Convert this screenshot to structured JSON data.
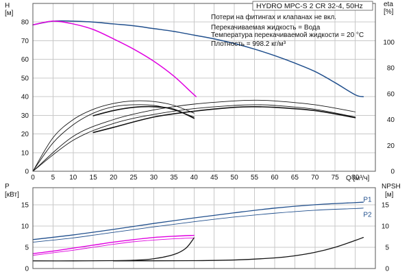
{
  "colors": {
    "head_curve": "#1f4e8c",
    "head_curve_single": "#e000e0",
    "efficiency": "#111111",
    "power": "#1f4e8c",
    "power_single": "#e000e0",
    "npsh": "#111111"
  },
  "chart_data": [
    {
      "type": "line",
      "title": "HYDRO MPC-S 2 CR 32-4, 50Hz",
      "notes": [
        "Потери на фитингах и клапанах не вкл.",
        "Перекачиваемая жидкость = Вода",
        "Температура перекачиваемой жидкости = 20 °C",
        "Плотность = 998.2 кг/м³"
      ],
      "xlabel": "Q [м³/ч]",
      "ylabel_left": "H",
      "ylabel_left_unit": "[м]",
      "ylabel_right": "eta",
      "ylabel_right_unit": "[%]",
      "xlim": [
        0,
        85
      ],
      "ylim_left": [
        0,
        90
      ],
      "ylim_right": [
        0,
        130
      ],
      "x_ticks": [
        0,
        5,
        10,
        15,
        20,
        25,
        30,
        35,
        40,
        45,
        50,
        55,
        60,
        65,
        70,
        75,
        80
      ],
      "y_ticks_left": [
        0,
        10,
        20,
        30,
        40,
        50,
        60,
        70,
        80
      ],
      "y_ticks_right": [
        0,
        20,
        40,
        60,
        80,
        100
      ],
      "grid": true,
      "series": [
        {
          "axis": "left",
          "color_key": "head_curve",
          "width": 1.5,
          "points": [
            [
              0,
              78.5
            ],
            [
              5,
              80.5
            ],
            [
              10,
              80.5
            ],
            [
              15,
              80
            ],
            [
              20,
              79
            ],
            [
              25,
              78
            ],
            [
              30,
              76.5
            ],
            [
              35,
              75
            ],
            [
              40,
              73
            ],
            [
              45,
              71
            ],
            [
              50,
              68.5
            ],
            [
              55,
              65.5
            ],
            [
              60,
              62
            ],
            [
              65,
              58
            ],
            [
              70,
              53.5
            ],
            [
              75,
              47.5
            ],
            [
              80,
              41
            ],
            [
              82,
              40
            ]
          ]
        },
        {
          "axis": "left",
          "color_key": "head_curve_single",
          "width": 1.5,
          "points": [
            [
              0,
              78.5
            ],
            [
              5,
              80.5
            ],
            [
              10,
              79
            ],
            [
              15,
              76
            ],
            [
              20,
              71
            ],
            [
              25,
              65.5
            ],
            [
              30,
              59
            ],
            [
              35,
              51
            ],
            [
              39,
              43
            ],
            [
              40.5,
              40
            ]
          ]
        },
        {
          "axis": "right",
          "color_key": "efficiency",
          "width": 0.9,
          "points": [
            [
              0,
              0
            ],
            [
              5,
              26
            ],
            [
              10,
              40
            ],
            [
              15,
              48
            ],
            [
              20,
              52.5
            ],
            [
              25,
              54.5
            ],
            [
              30,
              54
            ],
            [
              35,
              51
            ],
            [
              40,
              45
            ]
          ]
        },
        {
          "axis": "right",
          "color_key": "efficiency",
          "width": 0.9,
          "points": [
            [
              0,
              0
            ],
            [
              5,
              22
            ],
            [
              10,
              36
            ],
            [
              15,
              45
            ],
            [
              20,
              50
            ],
            [
              25,
              51.5
            ],
            [
              30,
              51
            ],
            [
              35,
              47.5
            ],
            [
              40,
              42
            ]
          ]
        },
        {
          "axis": "right",
          "color_key": "efficiency",
          "width": 1.6,
          "points": [
            [
              15,
              43
            ],
            [
              20,
              47
            ],
            [
              25,
              49.5
            ],
            [
              30,
              50
            ],
            [
              35,
              48
            ],
            [
              40,
              41
            ]
          ]
        },
        {
          "axis": "right",
          "color_key": "efficiency",
          "width": 0.9,
          "points": [
            [
              0,
              0
            ],
            [
              10,
              27
            ],
            [
              20,
              40
            ],
            [
              30,
              47.5
            ],
            [
              40,
              52
            ],
            [
              50,
              54.5
            ],
            [
              55,
              55
            ],
            [
              60,
              54.5
            ],
            [
              70,
              51.5
            ],
            [
              80,
              46
            ]
          ]
        },
        {
          "axis": "right",
          "color_key": "efficiency",
          "width": 0.9,
          "points": [
            [
              0,
              0
            ],
            [
              10,
              24
            ],
            [
              20,
              37
            ],
            [
              30,
              44
            ],
            [
              40,
              48.5
            ],
            [
              50,
              51
            ],
            [
              55,
              51.5
            ],
            [
              60,
              51
            ],
            [
              70,
              48
            ],
            [
              80,
              42
            ]
          ]
        },
        {
          "axis": "right",
          "color_key": "efficiency",
          "width": 1.6,
          "points": [
            [
              15,
              30
            ],
            [
              20,
              34
            ],
            [
              30,
              42
            ],
            [
              40,
              46.5
            ],
            [
              50,
              49.5
            ],
            [
              55,
              50
            ],
            [
              60,
              49.5
            ],
            [
              70,
              47
            ],
            [
              80,
              41.5
            ]
          ]
        }
      ]
    },
    {
      "type": "line",
      "xlim": [
        0,
        85
      ],
      "ylabel_left": "P",
      "ylabel_left_unit": "[кВт]",
      "ylabel_right": "NPSH",
      "ylabel_right_unit": "[м]",
      "ylim_left": [
        0,
        19
      ],
      "ylim_right": [
        0,
        19
      ],
      "y_ticks_left": [
        0,
        5,
        10,
        15
      ],
      "y_ticks_right": [
        0,
        5,
        10,
        15
      ],
      "grid": true,
      "series_labels": [
        {
          "text": "P1",
          "x": 82,
          "y": 16.3
        },
        {
          "text": "P2",
          "x": 82,
          "y": 12.7
        }
      ],
      "series": [
        {
          "axis": "left",
          "color_key": "power",
          "width": 1.3,
          "points": [
            [
              0,
              6.8
            ],
            [
              10,
              7.9
            ],
            [
              20,
              9.2
            ],
            [
              30,
              10.6
            ],
            [
              40,
              11.9
            ],
            [
              50,
              13.1
            ],
            [
              60,
              14.2
            ],
            [
              70,
              15
            ],
            [
              80,
              15.5
            ],
            [
              82,
              15.6
            ]
          ]
        },
        {
          "axis": "left",
          "color_key": "power",
          "width": 0.9,
          "points": [
            [
              0,
              6.2
            ],
            [
              10,
              7.2
            ],
            [
              20,
              8.5
            ],
            [
              30,
              9.8
            ],
            [
              40,
              11
            ],
            [
              50,
              12.1
            ],
            [
              60,
              13
            ],
            [
              70,
              13.7
            ],
            [
              80,
              14.1
            ],
            [
              82,
              14.2
            ]
          ]
        },
        {
          "axis": "left",
          "color_key": "power_single",
          "width": 1.4,
          "points": [
            [
              0,
              3.5
            ],
            [
              5,
              4.1
            ],
            [
              10,
              4.8
            ],
            [
              15,
              5.5
            ],
            [
              20,
              6.2
            ],
            [
              25,
              6.8
            ],
            [
              30,
              7.3
            ],
            [
              35,
              7.6
            ],
            [
              40,
              7.8
            ]
          ]
        },
        {
          "axis": "left",
          "color_key": "power_single",
          "width": 0.9,
          "points": [
            [
              0,
              3.1
            ],
            [
              5,
              3.7
            ],
            [
              10,
              4.3
            ],
            [
              15,
              5
            ],
            [
              20,
              5.7
            ],
            [
              25,
              6.3
            ],
            [
              30,
              6.7
            ],
            [
              35,
              7
            ],
            [
              40,
              7.2
            ]
          ]
        },
        {
          "axis": "right",
          "color_key": "npsh",
          "width": 1.3,
          "points": [
            [
              0,
              1.8
            ],
            [
              10,
              1.8
            ],
            [
              20,
              1.85
            ],
            [
              25,
              1.95
            ],
            [
              30,
              2.3
            ],
            [
              35,
              3.3
            ],
            [
              38,
              4.8
            ],
            [
              40,
              7.2
            ]
          ]
        },
        {
          "axis": "right",
          "color_key": "npsh",
          "width": 1.3,
          "points": [
            [
              20,
              1.8
            ],
            [
              40,
              1.85
            ],
            [
              50,
              2
            ],
            [
              60,
              2.5
            ],
            [
              65,
              3
            ],
            [
              70,
              3.8
            ],
            [
              75,
              5
            ],
            [
              80,
              6.6
            ],
            [
              82,
              7.3
            ]
          ]
        }
      ]
    }
  ]
}
